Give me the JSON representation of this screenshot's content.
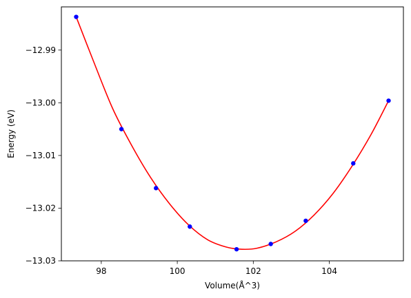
{
  "chart_data": {
    "type": "scatter",
    "title": "",
    "xlabel": "Volume(Å^3)",
    "ylabel": "Energy (eV)",
    "xlim": [
      96.95,
      105.95
    ],
    "ylim": [
      -13.03,
      -12.9818
    ],
    "xticks": [
      98,
      100,
      102,
      104
    ],
    "xtick_labels": [
      "98",
      "100",
      "102",
      "104"
    ],
    "yticks": [
      -13.03,
      -13.02,
      -13.01,
      -13.0,
      -12.99
    ],
    "ytick_labels": [
      "−13.03",
      "−13.02",
      "−13.01",
      "−13.00",
      "−12.99"
    ],
    "grid": false,
    "legend": "none",
    "series": [
      {
        "kind": "points",
        "color": "#0000ff",
        "x": [
          97.34,
          98.53,
          99.44,
          100.33,
          101.56,
          102.46,
          103.38,
          104.63,
          105.56
        ],
        "y": [
          -12.9837,
          -13.005,
          -13.0162,
          -13.0235,
          -13.0278,
          -13.0268,
          -13.0224,
          -13.0115,
          -12.9996
        ]
      },
      {
        "kind": "fit-curve",
        "color": "#ff0000",
        "x": [
          97.34,
          97.8,
          98.3,
          98.8,
          99.3,
          99.8,
          100.3,
          100.8,
          101.3,
          101.7,
          102.1,
          102.6,
          103.1,
          103.6,
          104.1,
          104.6,
          105.1,
          105.56
        ],
        "y": [
          -12.9837,
          -12.9922,
          -13.0011,
          -13.0081,
          -13.0142,
          -13.0192,
          -13.0232,
          -13.026,
          -13.0274,
          -13.0278,
          -13.0276,
          -13.0264,
          -13.0244,
          -13.0213,
          -13.0172,
          -13.012,
          -13.006,
          -12.9996
        ]
      }
    ]
  }
}
